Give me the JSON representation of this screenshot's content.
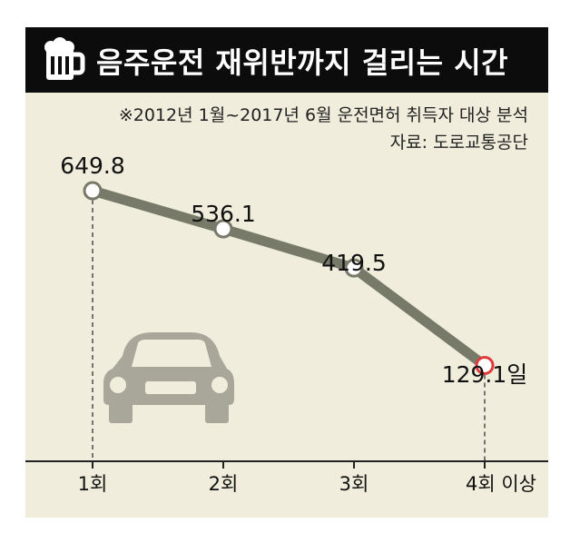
{
  "title": "음주운전 재위반까지 걸리는 시간",
  "icon": "beer-mug-icon",
  "note": "※2012년 1월~2017년 6월 운전면허 취득자 대상 분석",
  "source": "자료: 도로교통공단",
  "chart_data": {
    "type": "line",
    "categories": [
      "1회",
      "2회",
      "3회",
      "4회 이상"
    ],
    "series": [
      {
        "values": [
          649.8,
          536.1,
          419.5,
          129.1
        ]
      }
    ],
    "labels": [
      "649.8",
      "536.1",
      "419.5",
      "129.1일"
    ],
    "highlight_index": 3,
    "colors": {
      "line": "#777a68",
      "highlight": "#e03a3a",
      "background": "#f0eddc",
      "header": "#0c0c0c"
    },
    "grid": false,
    "decoration": "car-icon"
  }
}
